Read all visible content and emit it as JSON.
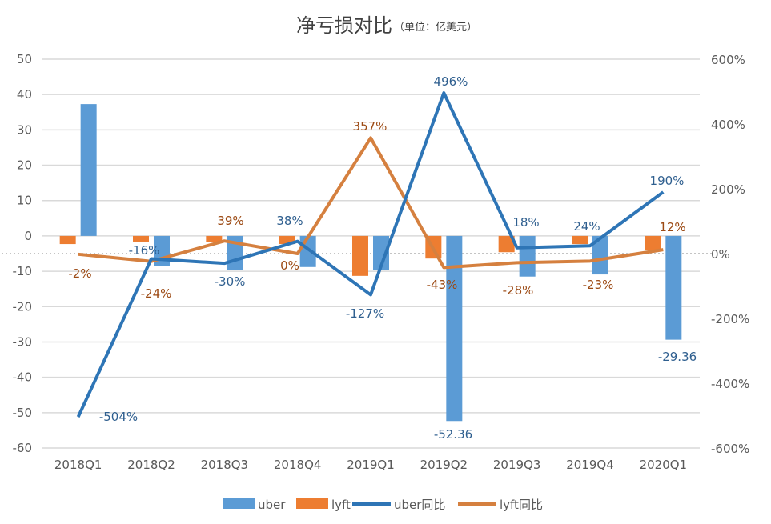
{
  "chart_data": {
    "type": "bar+line",
    "title": "净亏损对比",
    "subtitle": "（单位：亿美元）",
    "categories": [
      "2018Q1",
      "2018Q2",
      "2018Q3",
      "2018Q4",
      "2019Q1",
      "2019Q2",
      "2019Q3",
      "2019Q4",
      "2020Q1"
    ],
    "left_axis": {
      "ylim": [
        -60,
        50
      ],
      "ticks": [
        "50",
        "40",
        "30",
        "20",
        "10",
        "0",
        "-10",
        "-20",
        "-30",
        "-40",
        "-50",
        "-60"
      ]
    },
    "right_axis": {
      "ylim": [
        -600,
        600
      ],
      "ticks": [
        "600%",
        "400%",
        "200%",
        "0%",
        "-200%",
        "-400%",
        "-600%"
      ]
    },
    "grid": true,
    "legend_position": "bottom",
    "series": [
      {
        "name": "uber",
        "kind": "bar",
        "axis": "left",
        "color": "#5B9BD5",
        "values": [
          37.3,
          -8.6,
          -9.7,
          -8.8,
          -9.7,
          -52.36,
          -11.5,
          -10.9,
          -29.36
        ],
        "data_labels": [
          "",
          "",
          "",
          "",
          "",
          "-52.36",
          "",
          "",
          "-29.36"
        ]
      },
      {
        "name": "lyft",
        "kind": "bar",
        "axis": "left",
        "color": "#ED7D31",
        "values": [
          -2.3,
          -1.6,
          -1.7,
          -2.3,
          -11.3,
          -6.4,
          -4.6,
          -2.3,
          -3.9
        ],
        "data_labels": [
          "",
          "",
          "",
          "",
          "",
          "",
          "",
          "",
          ""
        ]
      },
      {
        "name": "uber同比",
        "kind": "line",
        "axis": "right",
        "color": "#2E75B6",
        "values": [
          -504,
          -16,
          -30,
          38,
          -127,
          496,
          18,
          24,
          190
        ],
        "data_labels": [
          "-504%",
          "-16%",
          "-30%",
          "38%",
          "-127%",
          "496%",
          "18%",
          "24%",
          "190%"
        ]
      },
      {
        "name": "lyft同比",
        "kind": "line",
        "axis": "right",
        "color": "#D5803F",
        "values": [
          -2,
          -24,
          39,
          0,
          357,
          -43,
          -28,
          -23,
          12
        ],
        "data_labels": [
          "-2%",
          "-24%",
          "39%",
          "0%",
          "357%",
          "-43%",
          "-28%",
          "-23%",
          "12%"
        ]
      }
    ]
  }
}
